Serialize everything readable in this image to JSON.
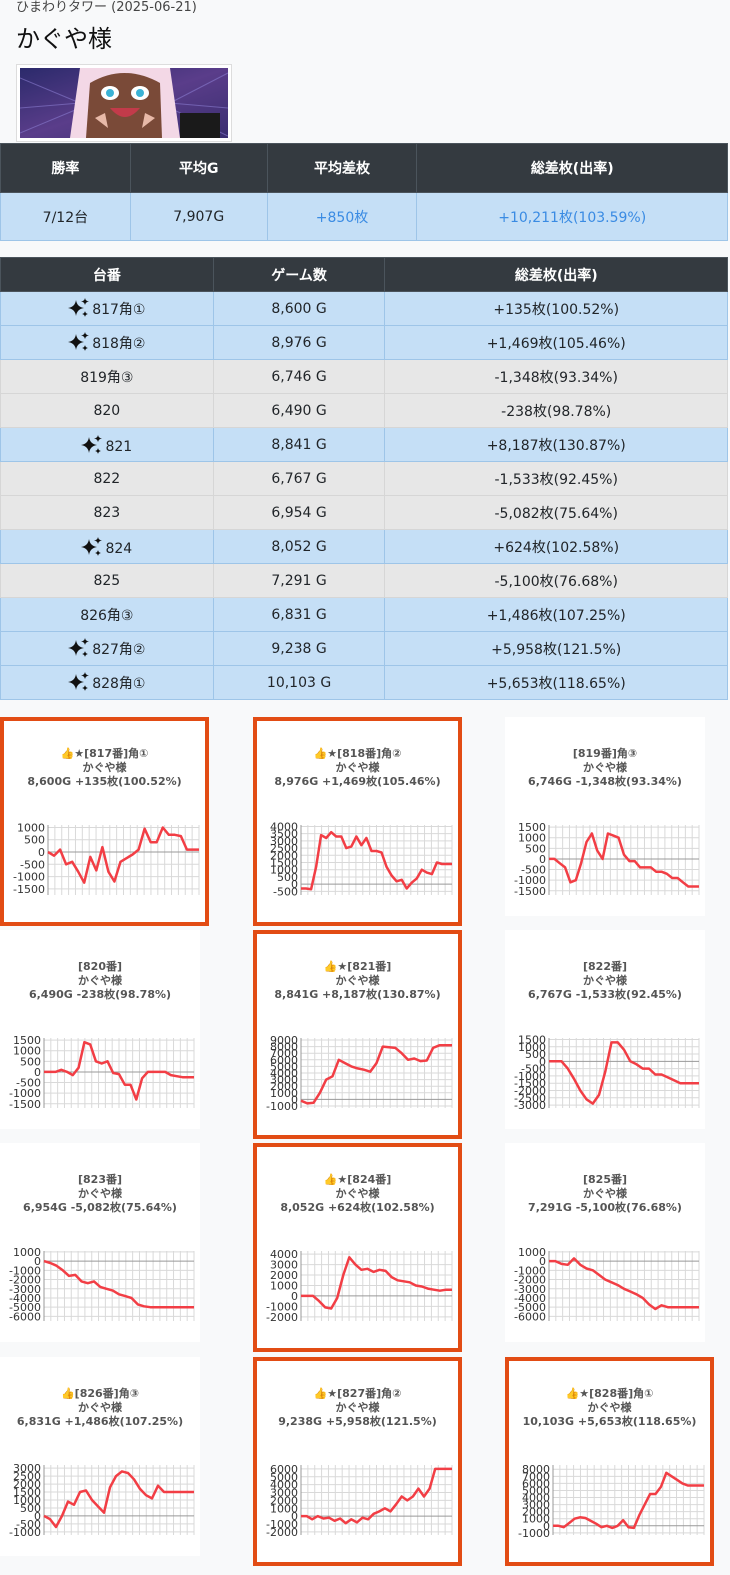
{
  "header": {
    "subtitle": "ひまわりタワー (2025-06-21)",
    "title": "かぐや様"
  },
  "summary": {
    "headers": [
      "勝率",
      "平均G",
      "平均差枚",
      "総差枚(出率)"
    ],
    "values": [
      "7/12台",
      "7,907G",
      "+850枚",
      "+10,211枚(103.59%)"
    ]
  },
  "machines": {
    "headers": [
      "台番",
      "ゲーム数",
      "総差枚(出率)"
    ],
    "rows": [
      {
        "no": "817角①",
        "games": "8,600 G",
        "diff": "+135枚(100.52%)",
        "win": true,
        "spark": true
      },
      {
        "no": "818角②",
        "games": "8,976 G",
        "diff": "+1,469枚(105.46%)",
        "win": true,
        "spark": true
      },
      {
        "no": "819角③",
        "games": "6,746 G",
        "diff": "-1,348枚(93.34%)",
        "win": false,
        "spark": false
      },
      {
        "no": "820",
        "games": "6,490 G",
        "diff": "-238枚(98.78%)",
        "win": false,
        "spark": false
      },
      {
        "no": "821",
        "games": "8,841 G",
        "diff": "+8,187枚(130.87%)",
        "win": true,
        "spark": true
      },
      {
        "no": "822",
        "games": "6,767 G",
        "diff": "-1,533枚(92.45%)",
        "win": false,
        "spark": false
      },
      {
        "no": "823",
        "games": "6,954 G",
        "diff": "-5,082枚(75.64%)",
        "win": false,
        "spark": false
      },
      {
        "no": "824",
        "games": "8,052 G",
        "diff": "+624枚(102.58%)",
        "win": true,
        "spark": true
      },
      {
        "no": "825",
        "games": "7,291 G",
        "diff": "-5,100枚(76.68%)",
        "win": false,
        "spark": false
      },
      {
        "no": "826角③",
        "games": "6,831 G",
        "diff": "+1,486枚(107.25%)",
        "win": true,
        "spark": false
      },
      {
        "no": "827角②",
        "games": "9,238 G",
        "diff": "+5,958枚(121.5%)",
        "win": true,
        "spark": true
      },
      {
        "no": "828角①",
        "games": "10,103 G",
        "diff": "+5,653枚(118.65%)",
        "win": true,
        "spark": true
      }
    ]
  },
  "chart_data": [
    {
      "type": "line",
      "highlight": true,
      "title": [
        "👍★[817番]角①",
        "かぐや様",
        "8,600G +135枚(100.52%)"
      ],
      "yticks": [
        "1000",
        "500",
        "0",
        "-500",
        "-1000",
        "-1500"
      ],
      "ylim": [
        -1750,
        1100
      ],
      "values": [
        0,
        -150,
        100,
        -500,
        -400,
        -800,
        -1250,
        -200,
        -750,
        200,
        -800,
        -1200,
        -400,
        -250,
        -100,
        100,
        950,
        400,
        400,
        1000,
        700,
        700,
        650,
        100,
        100,
        100
      ]
    },
    {
      "type": "line",
      "highlight": true,
      "title": [
        "👍★[818番]角②",
        "かぐや様",
        "8,976G +1,469枚(105.46%)"
      ],
      "yticks": [
        "4000",
        "3500",
        "3000",
        "2500",
        "2000",
        "1500",
        "1000",
        "500",
        "0",
        "-500"
      ],
      "ylim": [
        -750,
        4100
      ],
      "values": [
        -300,
        -300,
        -350,
        1200,
        3400,
        3200,
        3600,
        3300,
        3300,
        2500,
        2600,
        3300,
        2700,
        3200,
        2300,
        2300,
        2200,
        1200,
        600,
        200,
        300,
        -300,
        100,
        400,
        1000,
        800,
        700,
        1500,
        1400,
        1400,
        1400
      ]
    },
    {
      "type": "line",
      "highlight": false,
      "title": [
        "[819番]角③",
        "かぐや様",
        "6,746G -1,348枚(93.34%)"
      ],
      "yticks": [
        "1500",
        "1000",
        "500",
        "0",
        "-500",
        "-1000",
        "-1500"
      ],
      "ylim": [
        -1700,
        1600
      ],
      "values": [
        0,
        0,
        -200,
        -400,
        -1100,
        -1000,
        -200,
        800,
        1200,
        400,
        0,
        1200,
        1100,
        1000,
        200,
        -100,
        -100,
        -400,
        -400,
        -400,
        -600,
        -600,
        -700,
        -900,
        -900,
        -1100,
        -1300,
        -1300,
        -1300
      ]
    },
    {
      "type": "line",
      "highlight": false,
      "title": [
        "[820番]",
        "かぐや様",
        "6,490G -238枚(98.78%)"
      ],
      "yticks": [
        "1500",
        "1000",
        "500",
        "0",
        "-500",
        "-1000",
        "-1500"
      ],
      "ylim": [
        -1700,
        1600
      ],
      "values": [
        0,
        0,
        0,
        100,
        0,
        -150,
        200,
        1400,
        1300,
        500,
        400,
        500,
        -50,
        -100,
        -600,
        -600,
        -1300,
        -300,
        0,
        0,
        0,
        0,
        -150,
        -200,
        -250,
        -250,
        -250
      ]
    },
    {
      "type": "line",
      "highlight": true,
      "title": [
        "👍★[821番]",
        "かぐや様",
        "8,841G +8,187枚(130.87%)"
      ],
      "yticks": [
        "9000",
        "8000",
        "7000",
        "6000",
        "5000",
        "4000",
        "3000",
        "2000",
        "1000",
        "0",
        "-1000"
      ],
      "ylim": [
        -1300,
        9300
      ],
      "values": [
        -200,
        -600,
        -500,
        1000,
        3000,
        3500,
        6000,
        5500,
        5000,
        4700,
        4500,
        4200,
        5500,
        8000,
        7900,
        7800,
        7000,
        6000,
        6200,
        5800,
        5900,
        7800,
        8200,
        8200,
        8200
      ]
    },
    {
      "type": "line",
      "highlight": false,
      "title": [
        "[822番]",
        "かぐや様",
        "6,767G -1,533枚(92.45%)"
      ],
      "yticks": [
        "1500",
        "1000",
        "500",
        "0",
        "-500",
        "-1000",
        "-1500",
        "-2000",
        "-2500",
        "-3000"
      ],
      "ylim": [
        -3200,
        1600
      ],
      "values": [
        0,
        0,
        0,
        -500,
        -1200,
        -2000,
        -2600,
        -2900,
        -2300,
        -700,
        1300,
        1300,
        800,
        0,
        -200,
        -500,
        -500,
        -900,
        -900,
        -1100,
        -1300,
        -1500,
        -1500,
        -1500,
        -1500
      ]
    },
    {
      "type": "line",
      "highlight": false,
      "title": [
        "[823番]",
        "かぐや様",
        "6,954G -5,082枚(75.64%)"
      ],
      "yticks": [
        "1000",
        "0",
        "-1000",
        "-2000",
        "-3000",
        "-4000",
        "-5000",
        "-6000"
      ],
      "ylim": [
        -6500,
        1100
      ],
      "values": [
        0,
        -200,
        -500,
        -1000,
        -1600,
        -1500,
        -2200,
        -2400,
        -2200,
        -2800,
        -3000,
        -3200,
        -3600,
        -3800,
        -4000,
        -4700,
        -4900,
        -5000,
        -5000,
        -5000,
        -5000,
        -5000,
        -5000,
        -5000,
        -5000
      ]
    },
    {
      "type": "line",
      "highlight": true,
      "title": [
        "👍★[824番]",
        "かぐや様",
        "8,052G +624枚(102.58%)"
      ],
      "yticks": [
        "4000",
        "3000",
        "2000",
        "1000",
        "0",
        "-1000",
        "-2000"
      ],
      "ylim": [
        -2400,
        4300
      ],
      "values": [
        0,
        0,
        0,
        -500,
        -1100,
        -1200,
        -200,
        2000,
        3700,
        3000,
        2500,
        2600,
        2300,
        2500,
        2400,
        1800,
        1500,
        1400,
        1300,
        1000,
        900,
        700,
        600,
        500,
        600,
        600
      ]
    },
    {
      "type": "line",
      "highlight": false,
      "title": [
        "[825番]",
        "かぐや様",
        "7,291G -5,100枚(76.68%)"
      ],
      "yticks": [
        "1000",
        "0",
        "-1000",
        "-2000",
        "-3000",
        "-4000",
        "-5000",
        "-6000"
      ],
      "ylim": [
        -6500,
        1100
      ],
      "values": [
        0,
        0,
        -300,
        -400,
        300,
        -400,
        -800,
        -1000,
        -1500,
        -2000,
        -2300,
        -2600,
        -3000,
        -3300,
        -3600,
        -4000,
        -4700,
        -5200,
        -4800,
        -5000,
        -5000,
        -5000,
        -5000,
        -5000,
        -5000
      ]
    },
    {
      "type": "line",
      "highlight": false,
      "title": [
        "👍[826番]角③",
        "かぐや様",
        "6,831G +1,486枚(107.25%)"
      ],
      "yticks": [
        "3000",
        "2500",
        "2000",
        "1500",
        "1000",
        "500",
        "0",
        "-500",
        "-1000"
      ],
      "ylim": [
        -1200,
        3200
      ],
      "values": [
        0,
        -200,
        -700,
        0,
        900,
        700,
        1500,
        1600,
        1000,
        600,
        200,
        1800,
        2500,
        2800,
        2700,
        2300,
        1700,
        1300,
        1100,
        1900,
        1500,
        1500,
        1500,
        1500,
        1500,
        1500
      ]
    },
    {
      "type": "line",
      "highlight": true,
      "title": [
        "👍★[827番]角②",
        "かぐや様",
        "9,238G +5,958枚(121.5%)"
      ],
      "yticks": [
        "6000",
        "5000",
        "4000",
        "3000",
        "2000",
        "1000",
        "0",
        "-1000",
        "-2000"
      ],
      "ylim": [
        -2400,
        6500
      ],
      "values": [
        0,
        0,
        -400,
        0,
        -300,
        -200,
        -600,
        -300,
        -900,
        -400,
        -800,
        -200,
        -400,
        300,
        600,
        1000,
        600,
        1500,
        2500,
        2000,
        2500,
        3500,
        2500,
        3500,
        6000,
        6000,
        6000,
        6000
      ]
    },
    {
      "type": "line",
      "highlight": true,
      "title": [
        "👍★[828番]角①",
        "かぐや様",
        "10,103G +5,653枚(118.65%)"
      ],
      "yticks": [
        "8000",
        "7000",
        "6000",
        "5000",
        "4000",
        "3000",
        "2000",
        "1000",
        "0",
        "-1000"
      ],
      "ylim": [
        -1300,
        8600
      ],
      "values": [
        0,
        0,
        -200,
        400,
        1000,
        1200,
        1100,
        700,
        300,
        -200,
        0,
        -300,
        0,
        800,
        -200,
        -300,
        1500,
        3000,
        4500,
        4500,
        5500,
        7500,
        7000,
        6500,
        6000,
        5700,
        5700,
        5700,
        5700
      ]
    }
  ]
}
